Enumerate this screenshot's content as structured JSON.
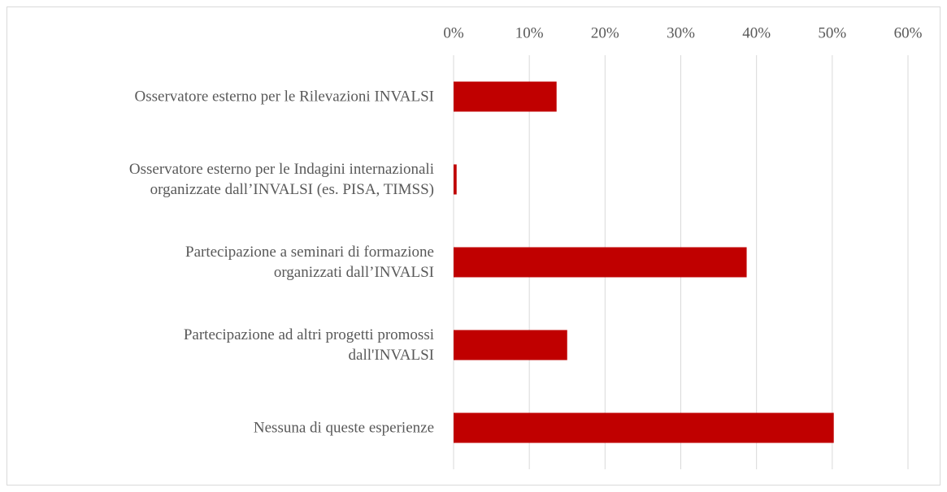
{
  "chart_data": {
    "type": "bar",
    "orientation": "horizontal",
    "categories": [
      "Osservatore esterno per le Rilevazioni  INVALSI",
      "Osservatore esterno per le Indagini internazionali\norganizzate dall’INVALSI  (es. PISA, TIMSS)",
      "Partecipazione a seminari di formazione\norganizzati dall’INVALSI",
      "Partecipazione ad altri progetti promossi\ndall'INVALSI",
      "Nessuna di queste esperienze"
    ],
    "values": [
      13.6,
      0.4,
      38.7,
      15.0,
      50.2
    ],
    "color": "#c00000",
    "xlim": [
      0,
      60
    ],
    "xticks": [
      {
        "value": 0,
        "label": "0%"
      },
      {
        "value": 10,
        "label": "10%"
      },
      {
        "value": 20,
        "label": "20%"
      },
      {
        "value": 30,
        "label": "30%"
      },
      {
        "value": 40,
        "label": "40%"
      },
      {
        "value": 50,
        "label": "50%"
      },
      {
        "value": 60,
        "label": "60%"
      }
    ],
    "grid": true
  }
}
